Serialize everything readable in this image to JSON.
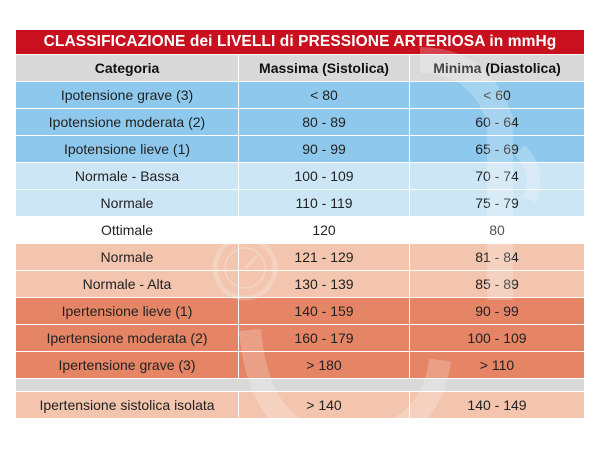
{
  "table": {
    "title": "CLASSIFICAZIONE dei LIVELLI di PRESSIONE ARTERIOSA in mmHg",
    "headers": [
      "Categoria",
      "Massima (Sistolica)",
      "Minima (Diastolica)"
    ],
    "rows": [
      {
        "category": "Ipotensione grave (3)",
        "systolic": "< 80",
        "diastolic": "< 60",
        "color": "#8ec8ec"
      },
      {
        "category": "Ipotensione moderata (2)",
        "systolic": "80 - 89",
        "diastolic": "60 - 64",
        "color": "#8ec8ec"
      },
      {
        "category": "Ipotensione lieve (1)",
        "systolic": "90 - 99",
        "diastolic": "65 - 69",
        "color": "#8ec8ec"
      },
      {
        "category": "Normale - Bassa",
        "systolic": "100 - 109",
        "diastolic": "70 - 74",
        "color": "#cde6f5"
      },
      {
        "category": "Normale",
        "systolic": "110 - 119",
        "diastolic": "75 - 79",
        "color": "#cde6f5"
      },
      {
        "category": "Ottimale",
        "systolic": "120",
        "diastolic": "80",
        "color": "#ffffff"
      },
      {
        "category": "Normale",
        "systolic": "121 - 129",
        "diastolic": "81 - 84",
        "color": "#f3c4ae"
      },
      {
        "category": "Normale - Alta",
        "systolic": "130 - 139",
        "diastolic": "85 - 89",
        "color": "#f3c4ae"
      },
      {
        "category": "Ipertensione lieve (1)",
        "systolic": "140 - 159",
        "diastolic": "90 - 99",
        "color": "#e58566"
      },
      {
        "category": "Ipertensione moderata (2)",
        "systolic": "160 - 179",
        "diastolic": "100 - 109",
        "color": "#e58566"
      },
      {
        "category": "Ipertensione grave (3)",
        "systolic": "> 180",
        "diastolic": "> 110",
        "color": "#e58566"
      },
      {
        "category": "Ipertensione sistolica isolata",
        "systolic": "> 140",
        "diastolic": "140 - 149",
        "color": "#f3c4ae",
        "gap_before": true
      }
    ]
  },
  "colors": {
    "title_bg": "#c8101e",
    "title_text": "#ffffff",
    "header_bg": "#d9d9d9",
    "gap_bg": "#d9d9d9"
  }
}
